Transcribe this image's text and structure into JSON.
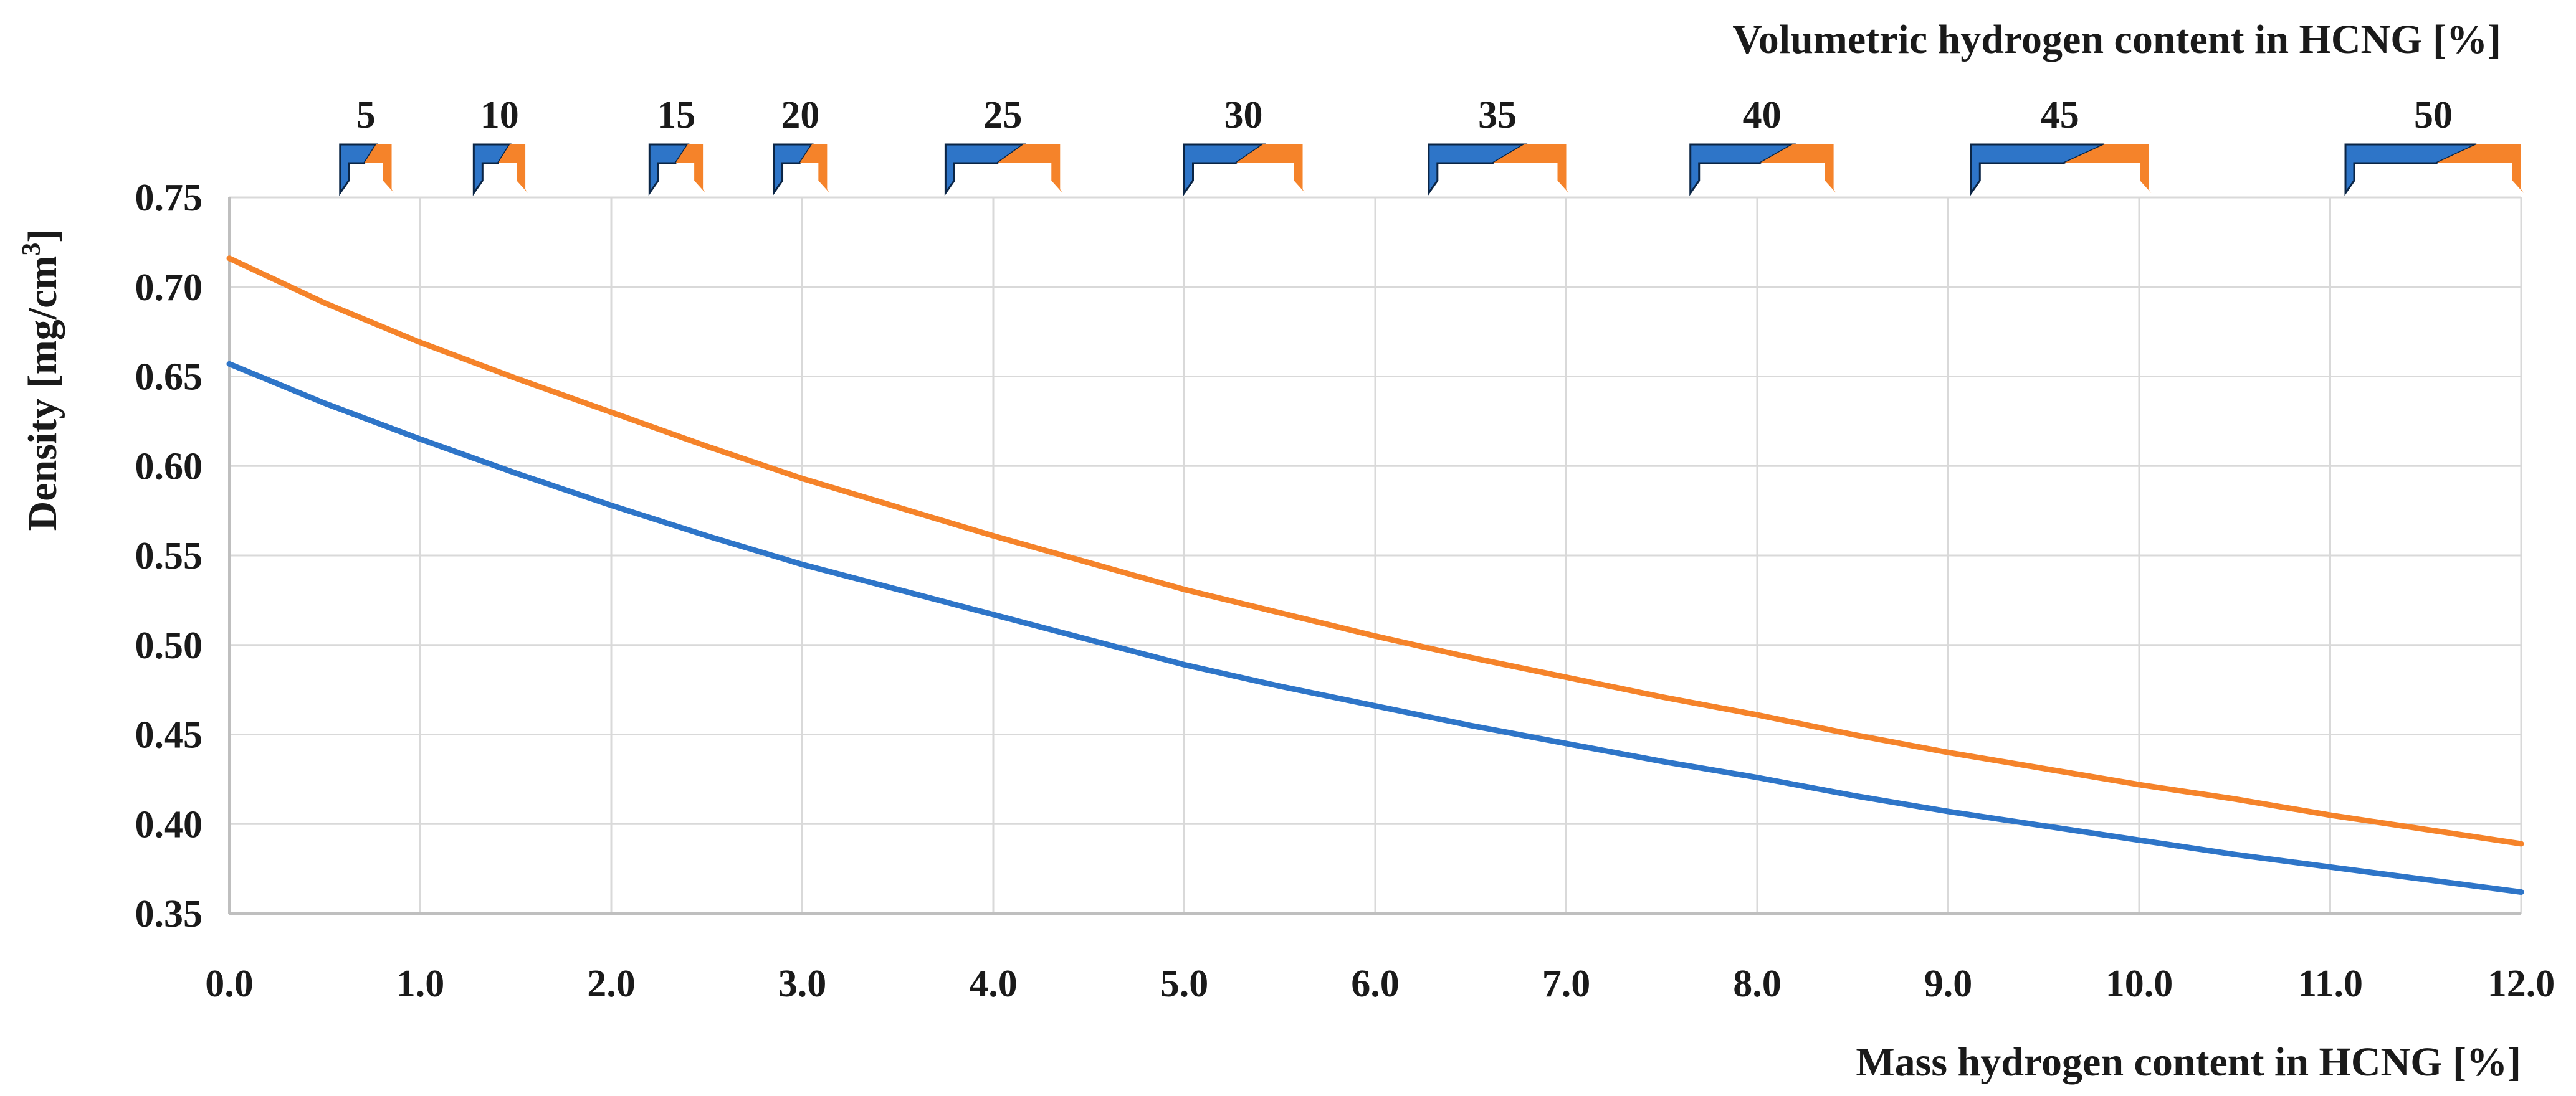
{
  "chart_data": {
    "type": "line",
    "title": "",
    "xlabel": "Mass hydrogen content in HCNG [%]",
    "ylabel": "Density [mg/cm",
    "ylabel_sup": "3",
    "ylabel_end": "]",
    "secondary_xlabel": "Volumetric hydrogen content in HCNG [%]",
    "xlim": [
      0,
      12
    ],
    "ylim": [
      0.35,
      0.75
    ],
    "grid": true,
    "x_ticks": [
      "0.0",
      "1.0",
      "2.0",
      "3.0",
      "4.0",
      "5.0",
      "6.0",
      "7.0",
      "8.0",
      "9.0",
      "10.0",
      "11.0",
      "12.0"
    ],
    "y_ticks": [
      "0.75",
      "0.70",
      "0.65",
      "0.60",
      "0.55",
      "0.50",
      "0.45",
      "0.40",
      "0.35"
    ],
    "secondary_ticks": [
      {
        "label": "5",
        "x_start": 0.58,
        "x_mid": 0.72,
        "x_end": 0.85
      },
      {
        "label": "10",
        "x_start": 1.28,
        "x_mid": 1.42,
        "x_end": 1.55
      },
      {
        "label": "15",
        "x_start": 2.2,
        "x_mid": 2.35,
        "x_end": 2.48
      },
      {
        "label": "20",
        "x_start": 2.85,
        "x_mid": 3.0,
        "x_end": 3.13
      },
      {
        "label": "25",
        "x_start": 3.75,
        "x_mid": 4.05,
        "x_end": 4.35
      },
      {
        "label": "30",
        "x_start": 5.0,
        "x_mid": 5.3,
        "x_end": 5.62
      },
      {
        "label": "35",
        "x_start": 6.28,
        "x_mid": 6.65,
        "x_end": 7.0
      },
      {
        "label": "40",
        "x_start": 7.65,
        "x_mid": 8.05,
        "x_end": 8.4
      },
      {
        "label": "45",
        "x_start": 9.12,
        "x_mid": 9.65,
        "x_end": 10.05
      },
      {
        "label": "50",
        "x_start": 11.08,
        "x_mid": 11.6,
        "x_end": 12.0
      }
    ],
    "series": [
      {
        "color": "#2E75C8",
        "x": [
          0,
          0.5,
          1,
          1.5,
          2,
          2.5,
          3,
          3.5,
          4,
          4.5,
          5,
          5.5,
          6,
          6.5,
          7,
          7.5,
          8,
          8.5,
          9,
          9.5,
          10,
          10.5,
          11,
          11.5,
          12
        ],
        "values": [
          0.657,
          0.635,
          0.615,
          0.596,
          0.578,
          0.561,
          0.545,
          0.531,
          0.517,
          0.503,
          0.489,
          0.477,
          0.466,
          0.455,
          0.445,
          0.435,
          0.426,
          0.416,
          0.407,
          0.399,
          0.391,
          0.383,
          0.376,
          0.369,
          0.362
        ]
      },
      {
        "color": "#F5832A",
        "x": [
          0,
          0.5,
          1,
          1.5,
          2,
          2.5,
          3,
          3.5,
          4,
          4.5,
          5,
          5.5,
          6,
          6.5,
          7,
          7.5,
          8,
          8.5,
          9,
          9.5,
          10,
          10.5,
          11,
          11.5,
          12
        ],
        "values": [
          0.716,
          0.691,
          0.669,
          0.649,
          0.63,
          0.611,
          0.593,
          0.577,
          0.561,
          0.546,
          0.531,
          0.518,
          0.505,
          0.493,
          0.482,
          0.471,
          0.461,
          0.45,
          0.44,
          0.431,
          0.422,
          0.414,
          0.405,
          0.397,
          0.389
        ]
      }
    ]
  }
}
